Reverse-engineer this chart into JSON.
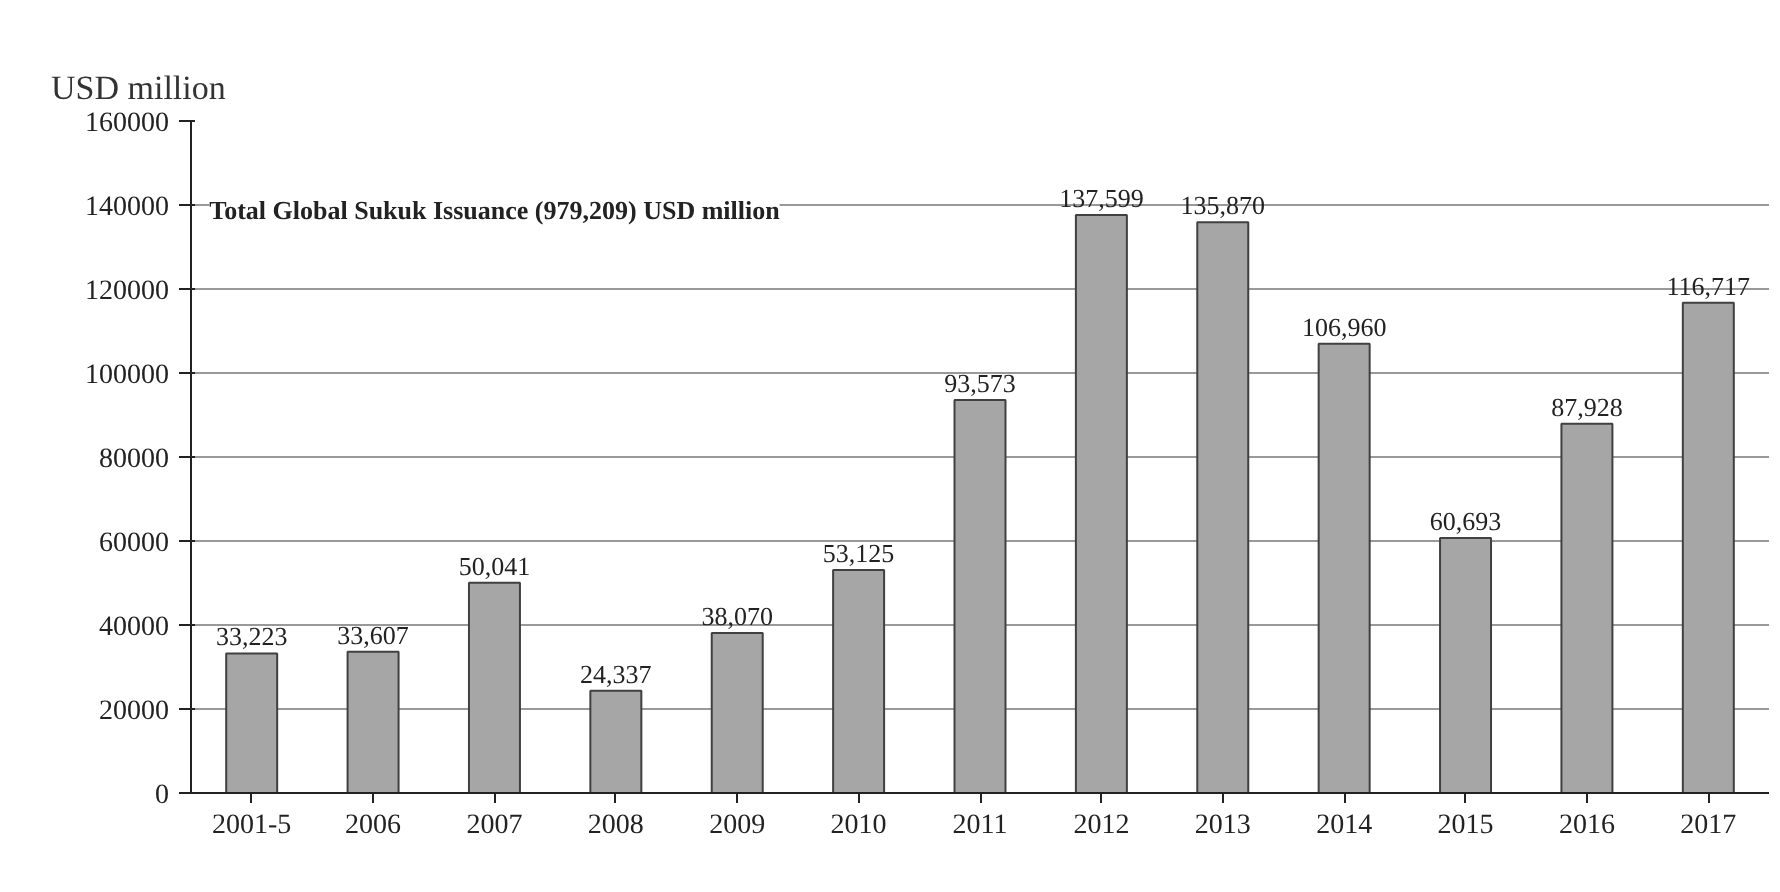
{
  "chart_data": {
    "type": "bar",
    "ylabel": "USD million",
    "categories": [
      "2001-5",
      "2006",
      "2007",
      "2008",
      "2009",
      "2010",
      "2011",
      "2012",
      "2013",
      "2014",
      "2015",
      "2016",
      "2017"
    ],
    "values": [
      33223,
      33607,
      50041,
      24337,
      38070,
      53125,
      93573,
      137599,
      135870,
      106960,
      60693,
      87928,
      116717
    ],
    "value_labels": [
      "33,223",
      "33,607",
      "50,041",
      "24,337",
      "38,070",
      "53,125",
      "93,573",
      "137,599",
      "135,870",
      "106,960",
      "60,693",
      "87,928",
      "116,717"
    ],
    "color": "#a6a6a6",
    "ylim": [
      0,
      160000
    ],
    "yticks": [
      0,
      20000,
      40000,
      60000,
      80000,
      100000,
      120000,
      140000,
      160000
    ],
    "grid": "y",
    "annotations": [
      "Total Global Sukuk Issuance (979,209) USD million"
    ]
  }
}
